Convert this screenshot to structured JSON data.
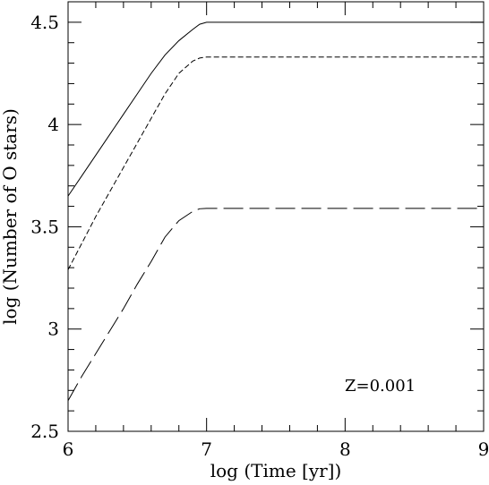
{
  "chart_data": {
    "type": "line",
    "xlabel": "log (Time [yr])",
    "ylabel": "log (Number of O stars)",
    "xlim": [
      6,
      9
    ],
    "ylim": [
      2.5,
      4.6
    ],
    "x_ticks": [
      6,
      7,
      8,
      9
    ],
    "x_tick_labels": [
      "6",
      "7",
      "8",
      "9"
    ],
    "y_ticks": [
      2.5,
      3,
      3.5,
      4,
      4.5
    ],
    "y_tick_labels": [
      "2.5",
      "3",
      "3.5",
      "4",
      "4.5"
    ],
    "annotation": "Z=0.001",
    "grid": false,
    "series": [
      {
        "style": "solid",
        "x": [
          6.0,
          6.1,
          6.2,
          6.3,
          6.4,
          6.5,
          6.6,
          6.7,
          6.8,
          6.9,
          6.95,
          7.0,
          7.5,
          8.0,
          8.5,
          9.0
        ],
        "y": [
          3.65,
          3.75,
          3.85,
          3.95,
          4.05,
          4.15,
          4.25,
          4.34,
          4.41,
          4.465,
          4.49,
          4.5,
          4.5,
          4.5,
          4.5,
          4.5
        ]
      },
      {
        "style": "dashed",
        "x": [
          6.0,
          6.1,
          6.2,
          6.3,
          6.4,
          6.5,
          6.6,
          6.7,
          6.8,
          6.9,
          6.95,
          7.0,
          7.5,
          8.0,
          8.5,
          9.0
        ],
        "y": [
          3.29,
          3.42,
          3.55,
          3.67,
          3.79,
          3.91,
          4.03,
          4.15,
          4.25,
          4.31,
          4.325,
          4.33,
          4.33,
          4.33,
          4.33,
          4.33
        ]
      },
      {
        "style": "long-dashed",
        "x": [
          6.0,
          6.1,
          6.2,
          6.3,
          6.4,
          6.5,
          6.6,
          6.7,
          6.8,
          6.9,
          6.95,
          7.0,
          7.5,
          8.0,
          8.5,
          9.0
        ],
        "y": [
          2.65,
          2.77,
          2.88,
          2.99,
          3.1,
          3.22,
          3.33,
          3.45,
          3.53,
          3.575,
          3.588,
          3.59,
          3.59,
          3.59,
          3.59,
          3.59
        ]
      }
    ]
  }
}
